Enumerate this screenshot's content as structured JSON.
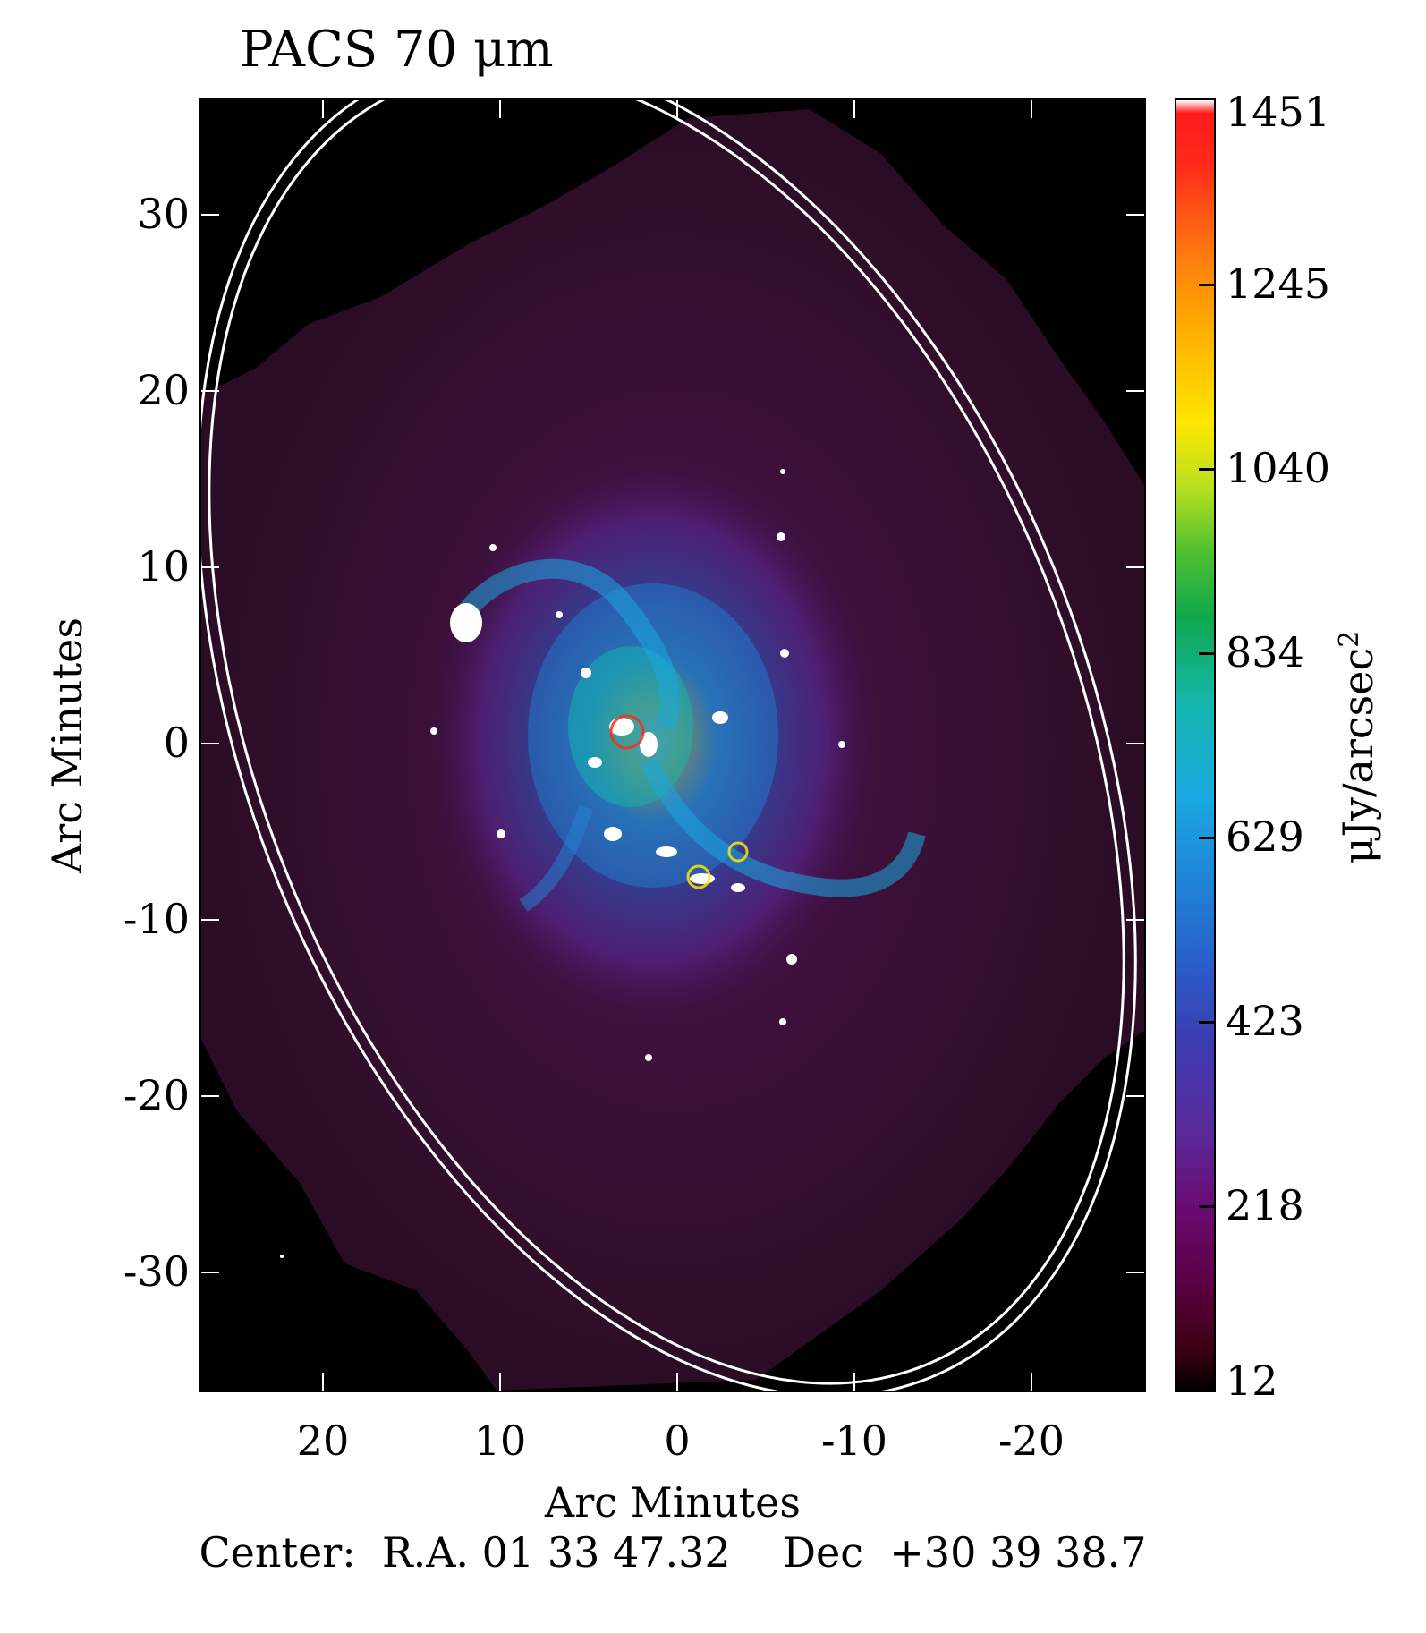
{
  "title": "PACS 70 μm",
  "axes": {
    "xlabel": "Arc Minutes",
    "ylabel": "Arc Minutes",
    "xticks": [
      "20",
      "10",
      "0",
      "-10",
      "-20"
    ],
    "yticks": [
      "30",
      "20",
      "10",
      "0",
      "-10",
      "-20",
      "-30"
    ]
  },
  "colorbar": {
    "labels": [
      "1451",
      "1245",
      "1040",
      "834",
      "629",
      "423",
      "218",
      "12"
    ],
    "unit_main": "μJy/arcsec",
    "unit_exp": "2",
    "colors": [
      "#000000",
      "#6a0a70",
      "#3b3bb0",
      "#1aa8e0",
      "#10a84c",
      "#ffe600",
      "#ff7a10",
      "#ff1a1a",
      "#ffffff"
    ]
  },
  "center": {
    "text": "Center:  R.A. 01 33 47.32    Dec  +30 39 38.7"
  }
}
